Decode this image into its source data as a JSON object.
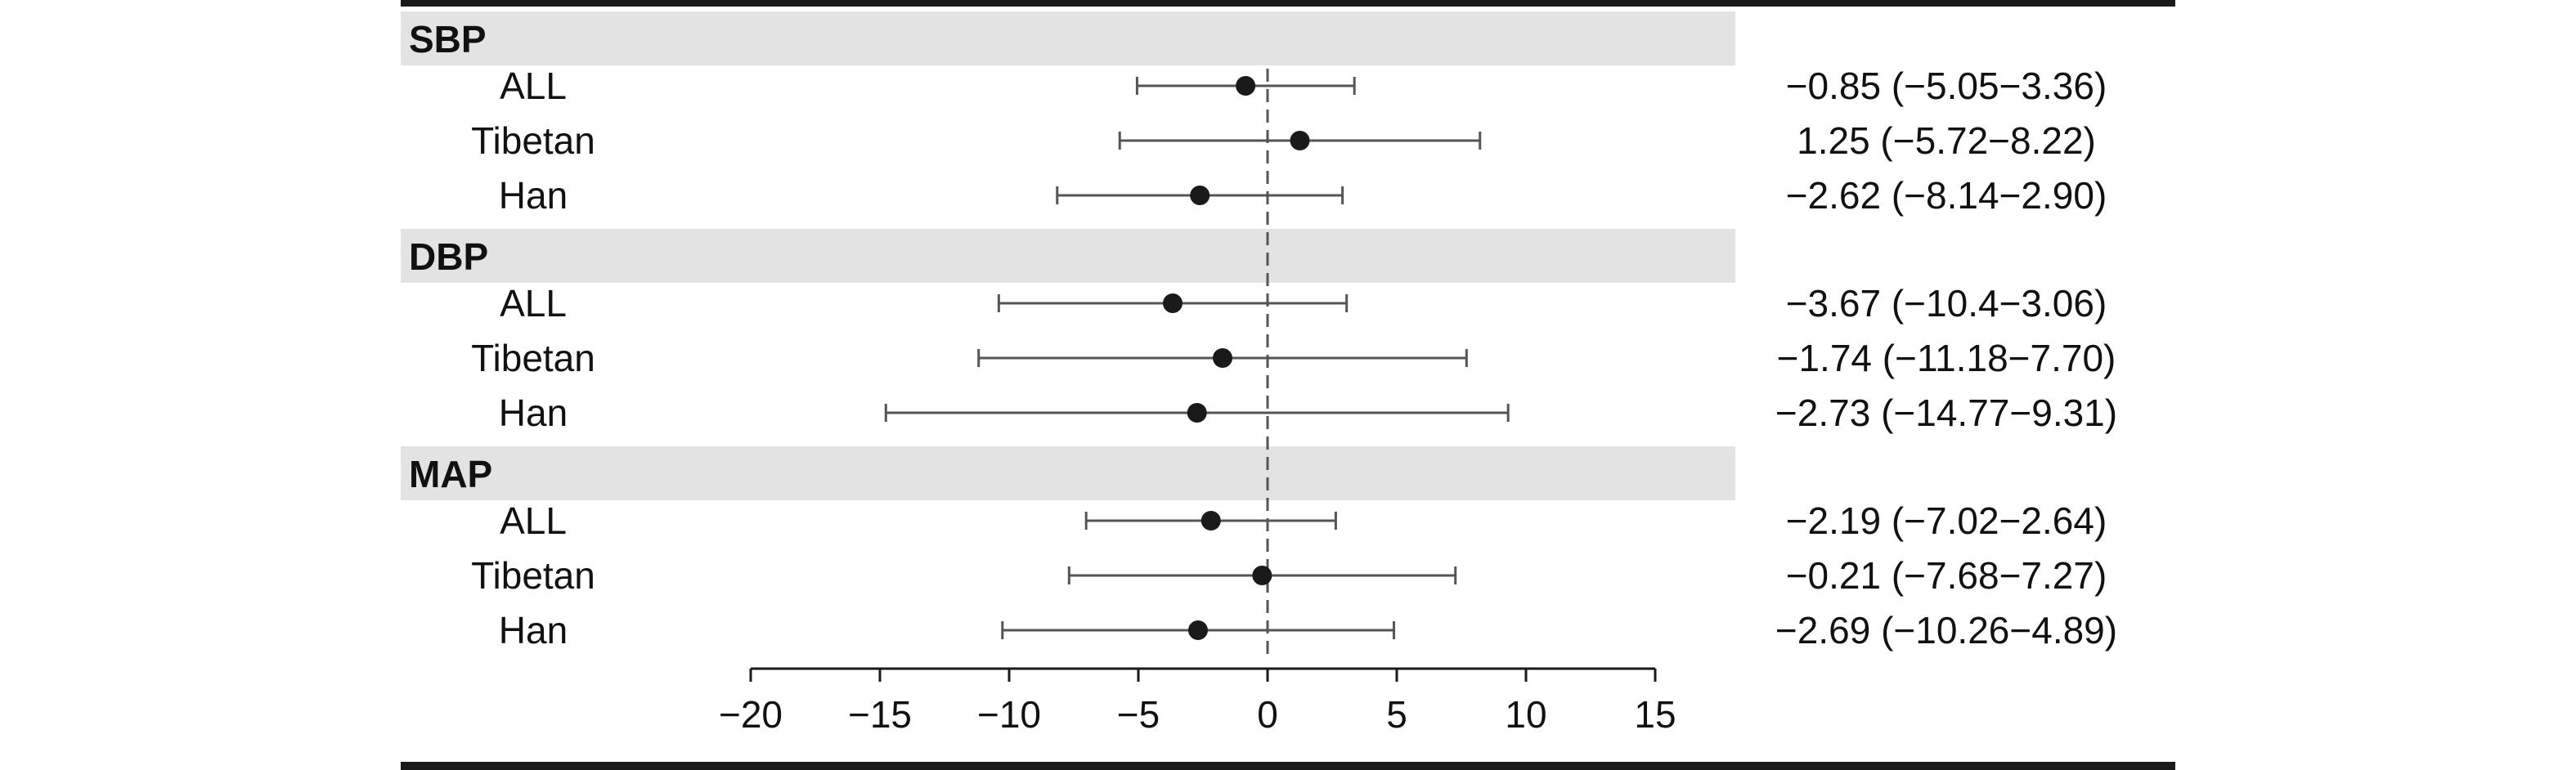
{
  "chart_data": {
    "type": "forest",
    "x_ticks": [
      -20,
      -15,
      -10,
      -5,
      0,
      5,
      10,
      15
    ],
    "xlim": [
      -20,
      15
    ],
    "reference_line": 0,
    "groups": [
      {
        "name": "SBP",
        "rows": [
          {
            "label": "ALL",
            "estimate": -0.85,
            "lower": -5.05,
            "upper": 3.36,
            "ci_text": "−0.85 (−5.05−3.36)"
          },
          {
            "label": "Tibetan",
            "estimate": 1.25,
            "lower": -5.72,
            "upper": 8.22,
            "ci_text": "1.25 (−5.72−8.22)"
          },
          {
            "label": "Han",
            "estimate": -2.62,
            "lower": -8.14,
            "upper": 2.9,
            "ci_text": "−2.62 (−8.14−2.90)"
          }
        ]
      },
      {
        "name": "DBP",
        "rows": [
          {
            "label": "ALL",
            "estimate": -3.67,
            "lower": -10.4,
            "upper": 3.06,
            "ci_text": "−3.67 (−10.4−3.06)"
          },
          {
            "label": "Tibetan",
            "estimate": -1.74,
            "lower": -11.18,
            "upper": 7.7,
            "ci_text": "−1.74 (−11.18−7.70)"
          },
          {
            "label": "Han",
            "estimate": -2.73,
            "lower": -14.77,
            "upper": 9.31,
            "ci_text": "−2.73 (−14.77−9.31)"
          }
        ]
      },
      {
        "name": "MAP",
        "rows": [
          {
            "label": "ALL",
            "estimate": -2.19,
            "lower": -7.02,
            "upper": 2.64,
            "ci_text": "−2.19 (−7.02−2.64)"
          },
          {
            "label": "Tibetan",
            "estimate": -0.21,
            "lower": -7.68,
            "upper": 7.27,
            "ci_text": "−0.21 (−7.68−7.27)"
          },
          {
            "label": "Han",
            "estimate": -2.69,
            "lower": -10.26,
            "upper": 4.89,
            "ci_text": "−2.69 (−10.26−4.89)"
          }
        ]
      }
    ],
    "colors": {
      "header_band": "#e3e3e3",
      "frame": "#1a1a1a",
      "whisker": "#555555",
      "point": "#1a1a1a",
      "reference": "#555555"
    }
  }
}
